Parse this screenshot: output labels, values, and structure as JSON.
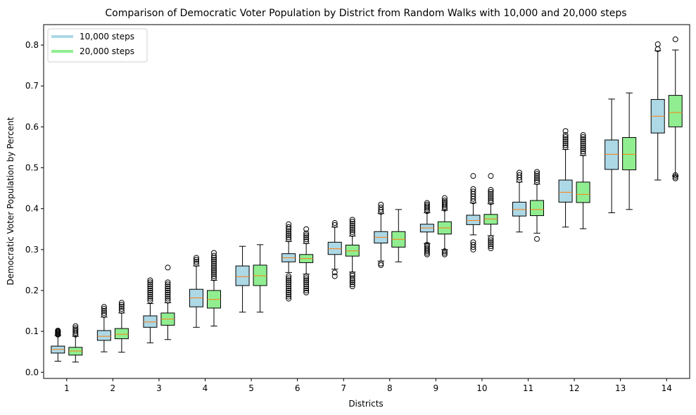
{
  "chart_data": {
    "type": "boxplot",
    "title": "Comparison of Democratic Voter Population by District from Random Walks with 10,000 and 20,000 steps",
    "xlabel": "Districts",
    "ylabel": "Democratic Voter Population by Percent",
    "ylim": [
      -0.015,
      0.85
    ],
    "yticks": [
      0.0,
      0.1,
      0.2,
      0.3,
      0.4,
      0.5,
      0.6,
      0.7,
      0.8
    ],
    "ytick_labels": [
      "0.0",
      "0.1",
      "0.2",
      "0.3",
      "0.4",
      "0.5",
      "0.6",
      "0.7",
      "0.8"
    ],
    "categories": [
      "1",
      "2",
      "3",
      "4",
      "5",
      "6",
      "7",
      "8",
      "9",
      "10",
      "11",
      "12",
      "13",
      "14"
    ],
    "legend_position": "top-left",
    "series": [
      {
        "name": "10,000 steps",
        "color": "#add8e6",
        "boxes": [
          {
            "whislo": 0.027,
            "q1": 0.047,
            "med": 0.056,
            "q3": 0.064,
            "whishi": 0.09,
            "fliers": [
              0.092,
              0.094,
              0.096,
              0.098,
              0.1,
              0.102
            ]
          },
          {
            "whislo": 0.05,
            "q1": 0.078,
            "med": 0.088,
            "q3": 0.102,
            "whishi": 0.135,
            "fliers": [
              0.14,
              0.145,
              0.15,
              0.155,
              0.16
            ]
          },
          {
            "whislo": 0.072,
            "q1": 0.11,
            "med": 0.123,
            "q3": 0.138,
            "whishi": 0.168,
            "fliers": [
              0.175,
              0.18,
              0.185,
              0.19,
              0.195,
              0.2,
              0.205,
              0.21,
              0.215,
              0.22,
              0.225
            ]
          },
          {
            "whislo": 0.11,
            "q1": 0.16,
            "med": 0.182,
            "q3": 0.203,
            "whishi": 0.26,
            "fliers": [
              0.265,
              0.27,
              0.275,
              0.28
            ]
          },
          {
            "whislo": 0.147,
            "q1": 0.212,
            "med": 0.234,
            "q3": 0.26,
            "whishi": 0.308,
            "fliers": []
          },
          {
            "whislo": 0.244,
            "q1": 0.27,
            "med": 0.28,
            "q3": 0.29,
            "whishi": 0.32,
            "fliers": [
              0.18,
              0.185,
              0.19,
              0.195,
              0.2,
              0.205,
              0.21,
              0.215,
              0.22,
              0.225,
              0.23,
              0.235,
              0.325,
              0.33,
              0.335,
              0.34,
              0.345,
              0.35,
              0.355,
              0.362
            ]
          },
          {
            "whislo": 0.252,
            "q1": 0.288,
            "med": 0.302,
            "q3": 0.318,
            "whishi": 0.355,
            "fliers": [
              0.235,
              0.244,
              0.36,
              0.365
            ]
          },
          {
            "whislo": 0.272,
            "q1": 0.316,
            "med": 0.33,
            "q3": 0.344,
            "whishi": 0.388,
            "fliers": [
              0.262,
              0.266,
              0.392,
              0.397,
              0.403,
              0.41
            ]
          },
          {
            "whislo": 0.315,
            "q1": 0.343,
            "med": 0.353,
            "q3": 0.362,
            "whishi": 0.39,
            "fliers": [
              0.288,
              0.292,
              0.296,
              0.3,
              0.304,
              0.308,
              0.312,
              0.394,
              0.398,
              0.402,
              0.406,
              0.41,
              0.414
            ]
          },
          {
            "whislo": 0.336,
            "q1": 0.361,
            "med": 0.371,
            "q3": 0.384,
            "whishi": 0.414,
            "fliers": [
              0.3,
              0.306,
              0.312,
              0.318,
              0.418,
              0.424,
              0.43,
              0.436,
              0.442,
              0.448,
              0.48
            ]
          },
          {
            "whislo": 0.343,
            "q1": 0.382,
            "med": 0.398,
            "q3": 0.416,
            "whishi": 0.465,
            "fliers": [
              0.47,
              0.476,
              0.482,
              0.488
            ]
          },
          {
            "whislo": 0.355,
            "q1": 0.416,
            "med": 0.44,
            "q3": 0.47,
            "whishi": 0.545,
            "fliers": [
              0.55,
              0.555,
              0.56,
              0.565,
              0.57,
              0.575,
              0.58,
              0.59
            ]
          },
          {
            "whislo": 0.39,
            "q1": 0.496,
            "med": 0.533,
            "q3": 0.568,
            "whishi": 0.668,
            "fliers": []
          },
          {
            "whislo": 0.47,
            "q1": 0.585,
            "med": 0.626,
            "q3": 0.667,
            "whishi": 0.786,
            "fliers": [
              0.79,
              0.802
            ]
          }
        ]
      },
      {
        "name": "20,000 steps",
        "color": "#90ee90",
        "boxes": [
          {
            "whislo": 0.025,
            "q1": 0.042,
            "med": 0.052,
            "q3": 0.061,
            "whishi": 0.088,
            "fliers": [
              0.092,
              0.096,
              0.1,
              0.104,
              0.108,
              0.113
            ]
          },
          {
            "whislo": 0.049,
            "q1": 0.082,
            "med": 0.093,
            "q3": 0.107,
            "whishi": 0.145,
            "fliers": [
              0.15,
              0.155,
              0.16,
              0.165,
              0.17
            ]
          },
          {
            "whislo": 0.08,
            "q1": 0.115,
            "med": 0.13,
            "q3": 0.145,
            "whishi": 0.17,
            "fliers": [
              0.175,
              0.18,
              0.185,
              0.19,
              0.195,
              0.2,
              0.205,
              0.21,
              0.215,
              0.22,
              0.256
            ]
          },
          {
            "whislo": 0.113,
            "q1": 0.157,
            "med": 0.178,
            "q3": 0.2,
            "whishi": 0.225,
            "fliers": [
              0.23,
              0.235,
              0.24,
              0.245,
              0.25,
              0.255,
              0.26,
              0.265,
              0.27,
              0.275,
              0.28,
              0.285,
              0.292
            ]
          },
          {
            "whislo": 0.147,
            "q1": 0.212,
            "med": 0.236,
            "q3": 0.262,
            "whishi": 0.312,
            "fliers": []
          },
          {
            "whislo": 0.24,
            "q1": 0.268,
            "med": 0.278,
            "q3": 0.288,
            "whishi": 0.315,
            "fliers": [
              0.195,
              0.2,
              0.205,
              0.21,
              0.215,
              0.22,
              0.225,
              0.23,
              0.235,
              0.32,
              0.325,
              0.33,
              0.335,
              0.34,
              0.35
            ]
          },
          {
            "whislo": 0.245,
            "q1": 0.284,
            "med": 0.297,
            "q3": 0.311,
            "whishi": 0.333,
            "fliers": [
              0.21,
              0.215,
              0.22,
              0.225,
              0.23,
              0.236,
              0.24,
              0.338,
              0.343,
              0.348,
              0.353,
              0.358,
              0.363,
              0.368,
              0.373
            ]
          },
          {
            "whislo": 0.27,
            "q1": 0.306,
            "med": 0.325,
            "q3": 0.344,
            "whishi": 0.398,
            "fliers": []
          },
          {
            "whislo": 0.3,
            "q1": 0.338,
            "med": 0.353,
            "q3": 0.368,
            "whishi": 0.396,
            "fliers": [
              0.288,
              0.292,
              0.296,
              0.4,
              0.404,
              0.408,
              0.412,
              0.416,
              0.42,
              0.426
            ]
          },
          {
            "whislo": 0.334,
            "q1": 0.362,
            "med": 0.375,
            "q3": 0.386,
            "whishi": 0.412,
            "fliers": [
              0.303,
              0.308,
              0.313,
              0.318,
              0.323,
              0.328,
              0.416,
              0.421,
              0.426,
              0.431,
              0.436,
              0.441,
              0.446,
              0.48
            ]
          },
          {
            "whislo": 0.34,
            "q1": 0.383,
            "med": 0.398,
            "q3": 0.42,
            "whishi": 0.46,
            "fliers": [
              0.326,
              0.465,
              0.47,
              0.475,
              0.48,
              0.485,
              0.49
            ]
          },
          {
            "whislo": 0.351,
            "q1": 0.415,
            "med": 0.435,
            "q3": 0.465,
            "whishi": 0.53,
            "fliers": [
              0.535,
              0.54,
              0.545,
              0.55,
              0.555,
              0.56,
              0.565,
              0.57,
              0.575,
              0.58
            ]
          },
          {
            "whislo": 0.398,
            "q1": 0.495,
            "med": 0.533,
            "q3": 0.574,
            "whishi": 0.683,
            "fliers": []
          },
          {
            "whislo": 0.48,
            "q1": 0.6,
            "med": 0.635,
            "q3": 0.677,
            "whishi": 0.788,
            "fliers": [
              0.474,
              0.478,
              0.482,
              0.814
            ]
          }
        ]
      }
    ]
  }
}
